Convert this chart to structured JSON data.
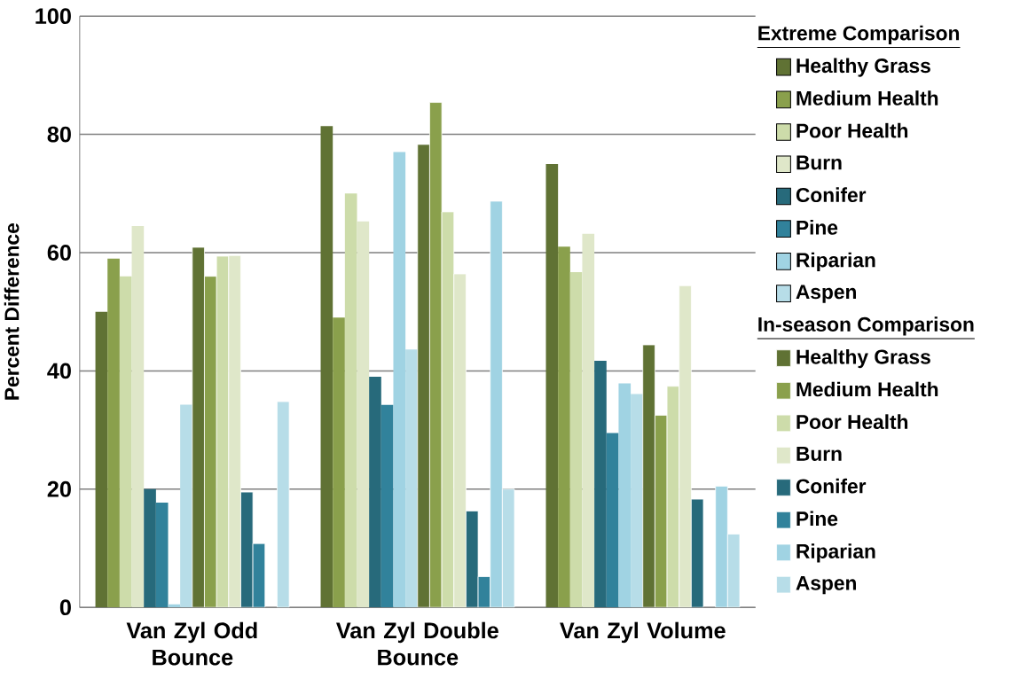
{
  "chart_data": {
    "type": "bar",
    "ylabel": "Percent Difference",
    "legend_title": "Extreme Comparison",
    "annotations": [
      "In-season Comparison"
    ],
    "categories": [
      "Van Zyl Odd Bounce",
      "Van Zyl Double Bounce",
      "Van Zyl Volume"
    ],
    "series": [
      {
        "name": "Healthy Grass",
        "color": "#607234",
        "values": [
          50,
          81.4,
          75
        ]
      },
      {
        "name": "Medium Health",
        "color": "#8aa04c",
        "values": [
          59,
          49,
          61
        ]
      },
      {
        "name": "Poor Health",
        "color": "#cddcaa",
        "values": [
          56,
          70,
          56.7
        ]
      },
      {
        "name": "Burn",
        "color": "#dfe7c9",
        "values": [
          64.5,
          65.3,
          63.2
        ]
      },
      {
        "name": "Conifer",
        "color": "#276a7b",
        "values": [
          20,
          39,
          41.7
        ]
      },
      {
        "name": "Pine",
        "color": "#31829b",
        "values": [
          17.7,
          34.3,
          29.5
        ]
      },
      {
        "name": "Riparian",
        "color": "#a0d3e3",
        "values": [
          0.5,
          77,
          37.9
        ]
      },
      {
        "name": "Aspen",
        "color": "#b7dde8",
        "values": [
          34.3,
          43.6,
          36.1
        ]
      },
      {
        "name": "Healthy Grass",
        "color": "#607234",
        "values": [
          60.9,
          78.3,
          44.4
        ]
      },
      {
        "name": "Medium Health",
        "color": "#8aa04c",
        "values": [
          56,
          85.4,
          32.5
        ]
      },
      {
        "name": "Poor Health",
        "color": "#cddcaa",
        "values": [
          59.4,
          66.9,
          37.4
        ]
      },
      {
        "name": "Burn",
        "color": "#dfe7c9",
        "values": [
          59.5,
          56.4,
          54.4
        ]
      },
      {
        "name": "Conifer",
        "color": "#276a7b",
        "values": [
          19.5,
          16.3,
          18.3
        ]
      },
      {
        "name": "Pine",
        "color": "#31829b",
        "values": [
          10.8,
          5.2,
          null
        ]
      },
      {
        "name": "Riparian",
        "color": "#a0d3e3",
        "values": [
          null,
          68.7,
          20.5
        ]
      },
      {
        "name": "Aspen",
        "color": "#b7dde8",
        "values": [
          34.8,
          20,
          12.4
        ]
      }
    ],
    "ylim": [
      0,
      100
    ],
    "yticks": [
      0,
      20,
      40,
      60,
      80,
      100
    ],
    "grid": "y",
    "legend": "right"
  }
}
